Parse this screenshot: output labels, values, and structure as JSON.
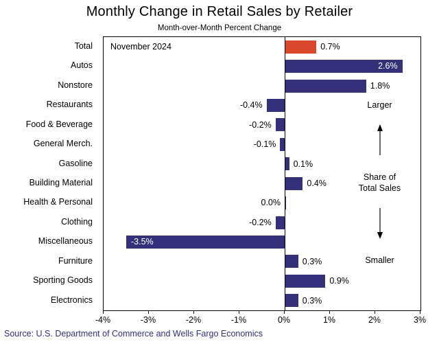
{
  "title": "Monthly Change in Retail Sales by Retailer",
  "subtitle": "Month-over-Month Percent Change",
  "annotation_date": "November 2024",
  "share_annotation": {
    "larger": "Larger",
    "line1": "Share of",
    "line2": "Total Sales",
    "smaller": "Smaller"
  },
  "source": "Source: U.S. Department of Commerce and Wells Fargo Economics",
  "colors": {
    "bar": "#34307a",
    "highlight": "#d9472b",
    "source_text": "#34307a",
    "inside_label_text": "#ffffff",
    "outside_label_text": "#000000"
  },
  "chart_data": {
    "type": "bar",
    "orientation": "horizontal",
    "title": "Monthly Change in Retail Sales by Retailer",
    "subtitle": "Month-over-Month Percent Change",
    "xlabel": "",
    "ylabel": "",
    "categories": [
      "Total",
      "Autos",
      "Nonstore",
      "Restaurants",
      "Food & Beverage",
      "General Merch.",
      "Gasoline",
      "Building Material",
      "Health & Personal",
      "Clothing",
      "Miscellaneous",
      "Furniture",
      "Sporting Goods",
      "Electronics"
    ],
    "values": [
      0.7,
      2.6,
      1.8,
      -0.4,
      -0.2,
      -0.1,
      0.1,
      0.4,
      0.0,
      -0.2,
      -3.5,
      0.3,
      0.9,
      0.3
    ],
    "labels": [
      "0.7%",
      "2.6%",
      "1.8%",
      "-0.4%",
      "-0.2%",
      "-0.1%",
      "0.1%",
      "0.4%",
      "0.0%",
      "-0.2%",
      "-3.5%",
      "0.3%",
      "0.9%",
      "0.3%"
    ],
    "xlim": [
      -4,
      3
    ],
    "x_tick_values": [
      -4,
      -3,
      -2,
      -1,
      0,
      1,
      2,
      3
    ],
    "x_ticks": [
      "-4%",
      "-3%",
      "-2%",
      "-1%",
      "0%",
      "1%",
      "2%",
      "3%"
    ],
    "highlight_index": 0,
    "inside_label_indices": [
      1,
      10
    ],
    "grid": false,
    "legend": false,
    "annotation": "November 2024"
  }
}
